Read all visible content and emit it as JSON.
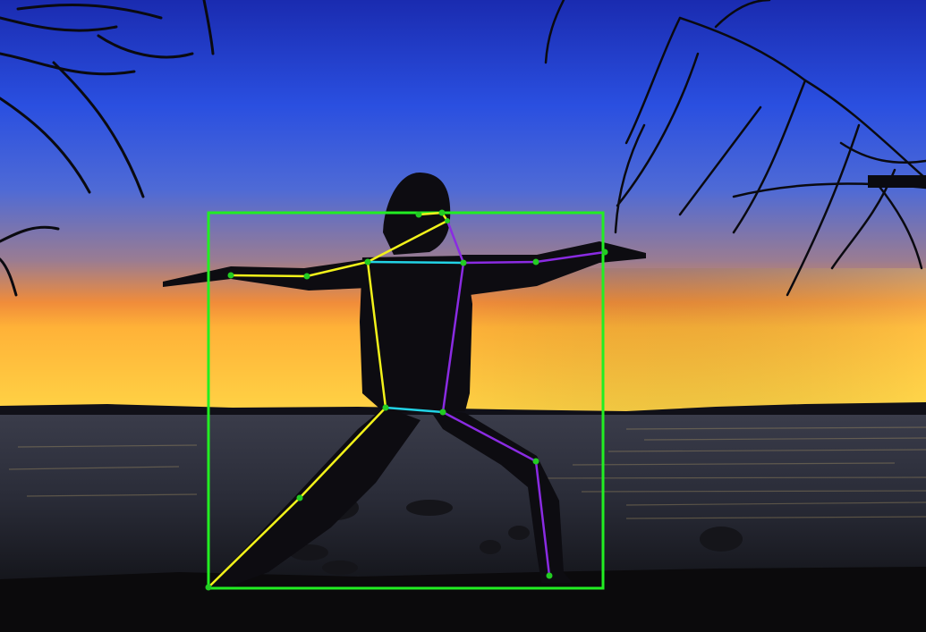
{
  "scene": {
    "description_tags": [
      "sunset-sky",
      "lake",
      "tree-silhouette",
      "person-silhouette",
      "pose-overlay"
    ],
    "sky_colors": [
      "#1a2fb8",
      "#2b52e3",
      "#5a6fd0",
      "#c07a6b",
      "#ff9a2a",
      "#ffd03a"
    ],
    "water_color": "#1d2333",
    "ground_color": "#0c0b0d"
  },
  "overlay": {
    "bbox_color": "#22ee22",
    "keypoint_color": "#22cc22",
    "colors": {
      "left_side": "#f2f21a",
      "right_side": "#8a2be2",
      "center": "#22d3e6"
    }
  }
}
